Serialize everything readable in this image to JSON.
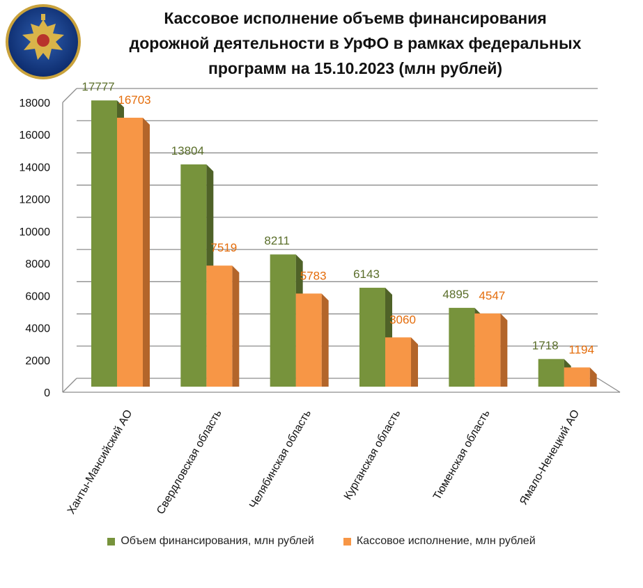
{
  "chart_data": {
    "type": "bar",
    "title_lines": [
      "Кассовое исполнение объемв финансирования",
      "дорожной деятельности в  УрФО в рамках федеральных",
      "программ на 15.10.2023 (млн рублей)"
    ],
    "categories": [
      "Ханты-Мансийский АО",
      "Свердловская область",
      "Челябинская область",
      "Курганская область",
      "Тюменская область",
      "Ямало-Ненецкий АО"
    ],
    "series": [
      {
        "name": "Объем финансирования, млн рублей",
        "values": [
          17777,
          13804,
          8211,
          6143,
          4895,
          1718
        ],
        "color": "#77933C",
        "side_color": "#4F6228",
        "label_color": "#5A6E2A"
      },
      {
        "name": "Кассовое исполнение, млн рублей",
        "values": [
          16703,
          7519,
          5783,
          3060,
          4547,
          1194
        ],
        "color": "#F79646",
        "side_color": "#B3652A",
        "label_color": "#E46C0A"
      }
    ],
    "yticks": [
      "0",
      "2000",
      "4000",
      "6000",
      "8000",
      "10000",
      "12000",
      "14000",
      "16000",
      "18000"
    ],
    "ylim": [
      0,
      18000
    ],
    "grid": true,
    "legend_position": "bottom"
  }
}
